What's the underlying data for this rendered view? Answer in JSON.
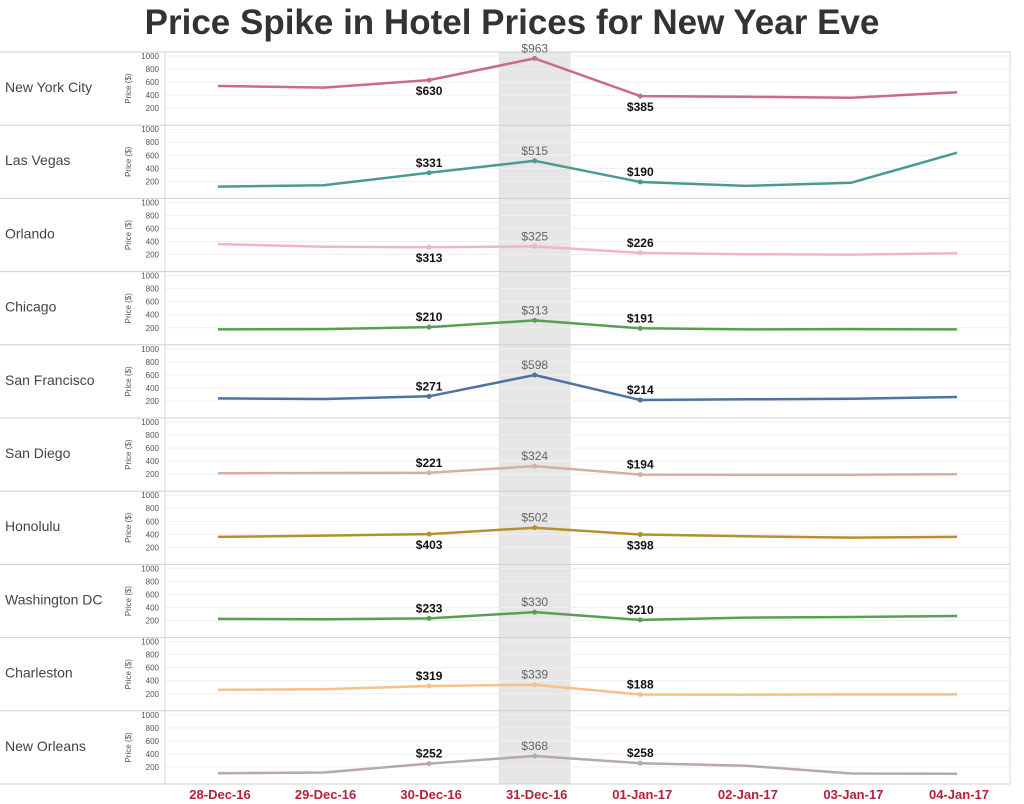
{
  "chart_data": {
    "type": "line",
    "title": "Price Spike in Hotel Prices for New Year Eve",
    "ylabel": "Price ($)",
    "ylim": [
      0,
      1000
    ],
    "yticks": [
      200,
      400,
      600,
      800,
      1000
    ],
    "x": [
      "28-Dec-16",
      "29-Dec-16",
      "30-Dec-16",
      "31-Dec-16",
      "01-Jan-17",
      "02-Jan-17",
      "03-Jan-17",
      "04-Jan-17"
    ],
    "highlight_category": "31-Dec-16",
    "series": [
      {
        "name": "New York City",
        "color": "#c96a8e",
        "values": [
          540,
          515,
          630,
          963,
          385,
          375,
          360,
          445
        ],
        "labels": {
          "30-Dec-16": "$630",
          "31-Dec-16": "$963",
          "01-Jan-17": "$385"
        },
        "label_pos": [
          "below",
          "above",
          "below"
        ]
      },
      {
        "name": "Las Vegas",
        "color": "#4a9a92",
        "values": [
          120,
          140,
          331,
          515,
          190,
          130,
          180,
          640
        ],
        "labels": {
          "30-Dec-16": "$331",
          "31-Dec-16": "$515",
          "01-Jan-17": "$190"
        },
        "label_pos": [
          "above",
          "above",
          "above"
        ]
      },
      {
        "name": "Orlando",
        "color": "#f2b5c7",
        "values": [
          360,
          320,
          313,
          325,
          226,
          205,
          200,
          220
        ],
        "labels": {
          "30-Dec-16": "$313",
          "31-Dec-16": "$325",
          "01-Jan-17": "$226"
        },
        "label_pos": [
          "below",
          "above",
          "above"
        ]
      },
      {
        "name": "Chicago",
        "color": "#5a9e54",
        "values": [
          175,
          180,
          210,
          313,
          191,
          175,
          180,
          175
        ],
        "labels": {
          "30-Dec-16": "$210",
          "31-Dec-16": "$313",
          "01-Jan-17": "$191"
        },
        "label_pos": [
          "above",
          "above",
          "above"
        ]
      },
      {
        "name": "San Francisco",
        "color": "#4e73a0",
        "values": [
          240,
          230,
          271,
          598,
          214,
          225,
          235,
          260
        ],
        "labels": {
          "30-Dec-16": "$271",
          "31-Dec-16": "$598",
          "01-Jan-17": "$214"
        },
        "label_pos": [
          "above",
          "above",
          "above"
        ]
      },
      {
        "name": "San Diego",
        "color": "#d4b0a2",
        "values": [
          215,
          218,
          221,
          324,
          194,
          190,
          192,
          200
        ],
        "labels": {
          "30-Dec-16": "$221",
          "31-Dec-16": "$324",
          "01-Jan-17": "$194"
        },
        "label_pos": [
          "above",
          "above",
          "above"
        ]
      },
      {
        "name": "Honolulu",
        "color": "#b3922e",
        "values": [
          360,
          380,
          403,
          502,
          398,
          370,
          350,
          360
        ],
        "labels": {
          "30-Dec-16": "$403",
          "31-Dec-16": "$502",
          "01-Jan-17": "$398"
        },
        "label_pos": [
          "below",
          "above",
          "below"
        ]
      },
      {
        "name": "Washington DC",
        "color": "#5a9e54",
        "values": [
          225,
          220,
          233,
          330,
          210,
          245,
          255,
          270
        ],
        "labels": {
          "30-Dec-16": "$233",
          "31-Dec-16": "$330",
          "01-Jan-17": "$210"
        },
        "label_pos": [
          "above",
          "above",
          "above"
        ]
      },
      {
        "name": "Charleston",
        "color": "#f5c08a",
        "values": [
          260,
          270,
          319,
          339,
          188,
          185,
          190,
          190
        ],
        "labels": {
          "30-Dec-16": "$319",
          "31-Dec-16": "$339",
          "01-Jan-17": "$188"
        },
        "label_pos": [
          "above",
          "above",
          "above"
        ]
      },
      {
        "name": "New Orleans",
        "color": "#b8a8a8",
        "values": [
          105,
          115,
          252,
          368,
          258,
          220,
          100,
          95
        ],
        "labels": {
          "30-Dec-16": "$252",
          "31-Dec-16": "$368",
          "01-Jan-17": "$258"
        },
        "label_pos": [
          "above",
          "above",
          "above"
        ]
      }
    ]
  }
}
